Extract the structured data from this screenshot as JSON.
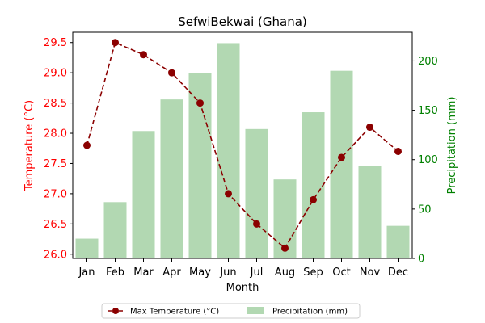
{
  "chart_data": {
    "type": "bar+line",
    "title": "SefwiBekwai (Ghana)",
    "xlabel": "Month",
    "ylabel_left": "Temperature (°C)",
    "ylabel_right": "Precipitation (mm)",
    "categories": [
      "Jan",
      "Feb",
      "Mar",
      "Apr",
      "May",
      "Jun",
      "Jul",
      "Aug",
      "Sep",
      "Oct",
      "Nov",
      "Dec"
    ],
    "series": [
      {
        "name": "Max Temperature (°C)",
        "axis": "left",
        "kind": "line",
        "color": "#8b0000",
        "values": [
          27.8,
          29.5,
          29.3,
          29.0,
          28.5,
          27.0,
          26.5,
          26.1,
          26.9,
          27.6,
          28.1,
          27.7
        ]
      },
      {
        "name": "Precipitation (mm)",
        "axis": "right",
        "kind": "bar",
        "color": "#b2d8b2",
        "values": [
          20,
          57,
          129,
          161,
          188,
          218,
          131,
          80,
          148,
          190,
          94,
          33
        ]
      }
    ],
    "ylim_left": [
      25.93,
      29.67
    ],
    "ylim_right": [
      0,
      229
    ],
    "yticks_left": [
      "26.0",
      "26.5",
      "27.0",
      "27.5",
      "28.0",
      "28.5",
      "29.0",
      "29.5"
    ],
    "yticks_right": [
      "0",
      "50",
      "100",
      "150",
      "200"
    ],
    "left_axis_color": "#ff0000",
    "right_axis_color": "#008000",
    "grid": false,
    "legend_position": "bottom-center"
  }
}
